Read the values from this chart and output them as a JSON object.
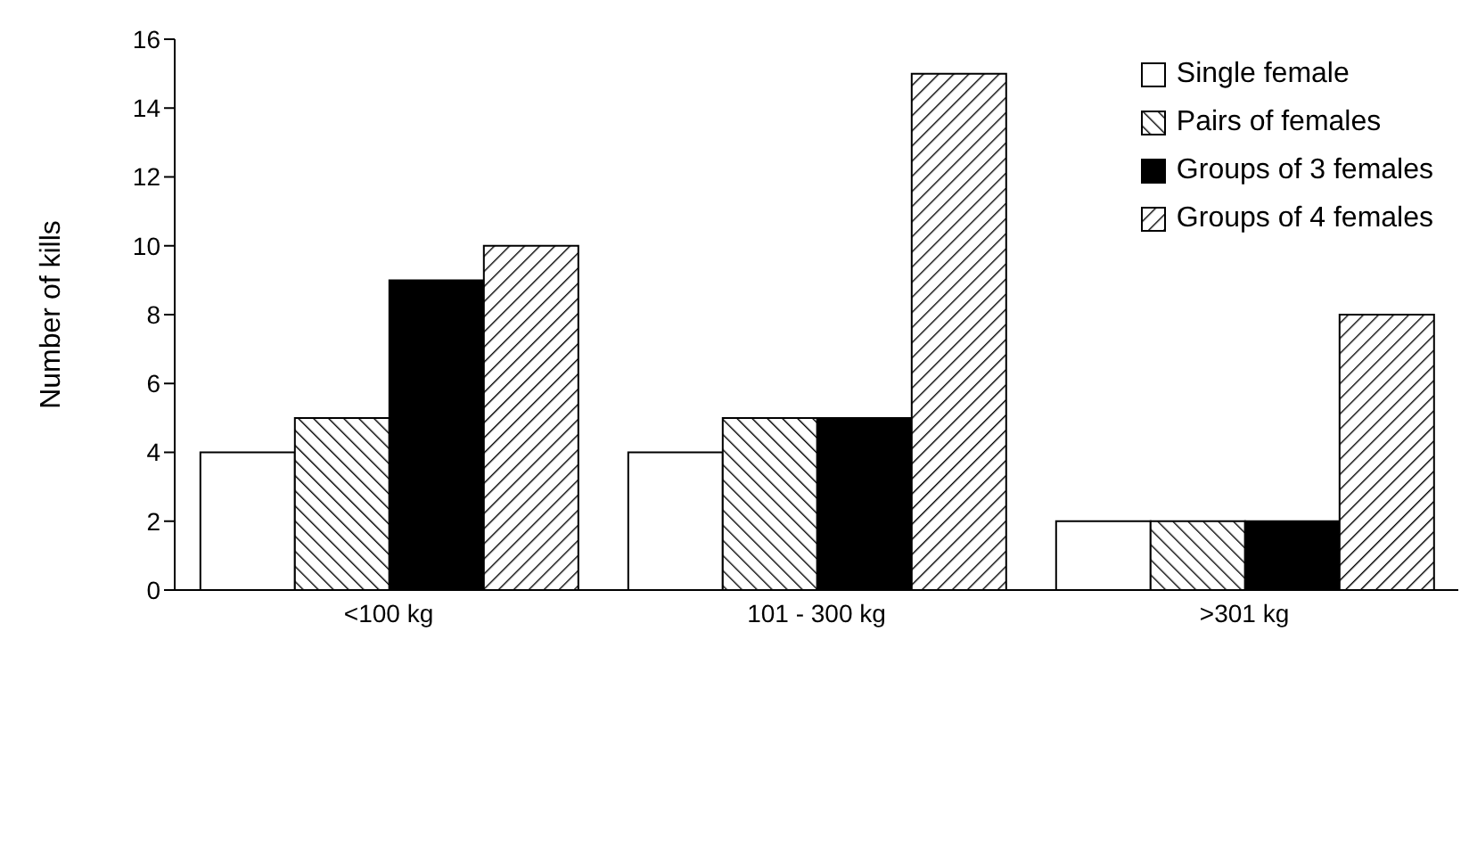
{
  "chart_data": {
    "type": "bar",
    "ylabel": "Number of kills",
    "categories": [
      "<100 kg",
      "101 - 300 kg",
      ">301 kg"
    ],
    "series": [
      {
        "name": "Single female",
        "color": "#ffffff",
        "values": [
          4,
          4,
          2
        ]
      },
      {
        "name": "Pairs of females",
        "color": "#000000",
        "values": [
          5,
          5,
          2
        ]
      },
      {
        "name": "Groups of 3 females",
        "color": "#000000",
        "values": [
          9,
          5,
          2
        ]
      },
      {
        "name": "Groups of 4 females",
        "color": "#000000",
        "values": [
          10,
          15,
          8
        ]
      }
    ],
    "ylim": [
      0,
      16
    ],
    "yticks": [
      0,
      2,
      4,
      6,
      8,
      10,
      12,
      14,
      16
    ],
    "grid": false,
    "legend": "top right"
  }
}
